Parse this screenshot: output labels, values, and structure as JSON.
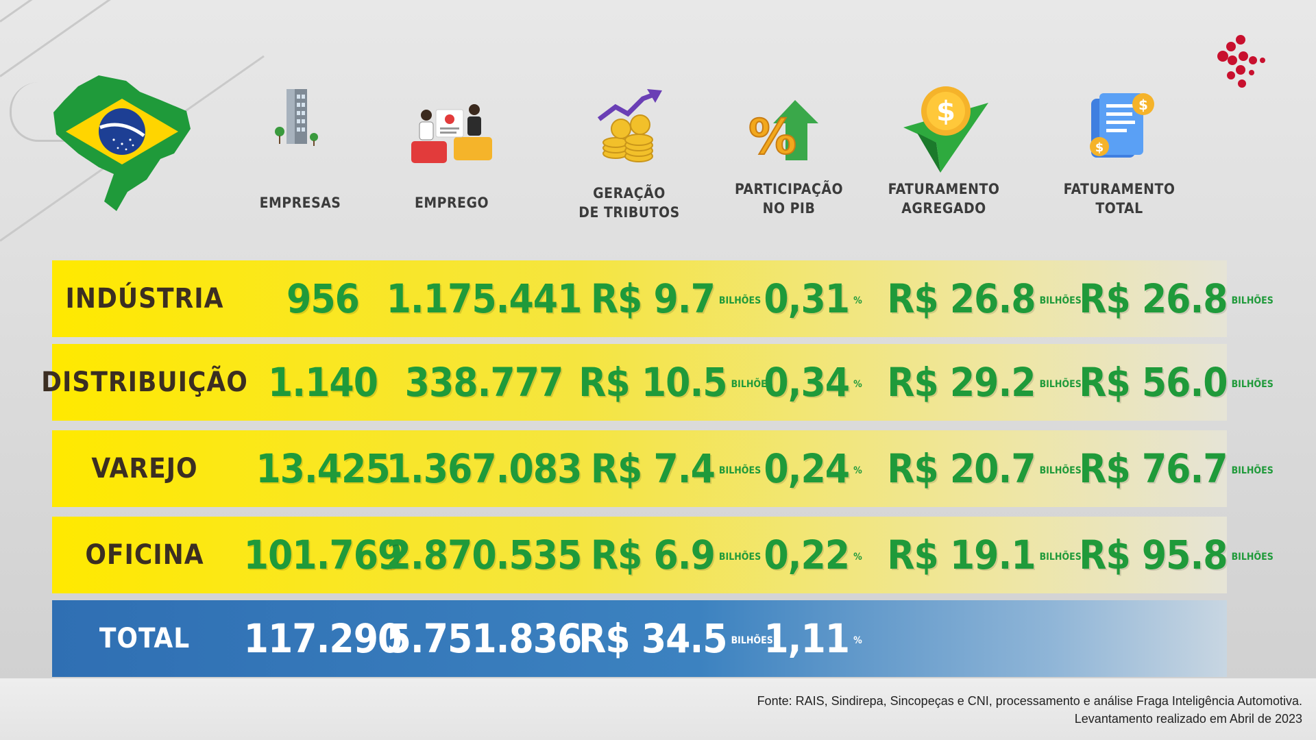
{
  "colors": {
    "green": "#1f9a3a",
    "yellow": "#ffe900",
    "blue": "#2f6fb3",
    "logo": "#c8102e"
  },
  "headers": [
    {
      "line1": "EMPRESAS",
      "line2": "",
      "icon": "building-icon"
    },
    {
      "line1": "EMPREGO",
      "line2": "",
      "icon": "workers-icon"
    },
    {
      "line1": "GERAÇÃO",
      "line2": "DE TRIBUTOS",
      "icon": "coins-growth-icon"
    },
    {
      "line1": "PARTICIPAÇÃO",
      "line2": "NO PIB",
      "icon": "percent-arrow-icon"
    },
    {
      "line1": "FATURAMENTO",
      "line2": "AGREGADO",
      "icon": "dollar-arrow-icon"
    },
    {
      "line1": "FATURAMENTO",
      "line2": "TOTAL",
      "icon": "bill-scroll-icon"
    }
  ],
  "rows": [
    {
      "label": "INDÚSTRIA",
      "empresas": "956",
      "emprego": "1.175.441",
      "tributos": "R$ 9.7",
      "tributos_unit": "BILHÕES",
      "pib": "0,31",
      "pib_unit": "%",
      "agregado": "R$ 26.8",
      "agregado_unit": "BILHÕES",
      "total": "R$ 26.8",
      "total_unit": "BILHÕES"
    },
    {
      "label": "DISTRIBUIÇÃO",
      "empresas": "1.140",
      "emprego": "338.777",
      "tributos": "R$ 10.5",
      "tributos_unit": "BILHÕES",
      "pib": "0,34",
      "pib_unit": "%",
      "agregado": "R$ 29.2",
      "agregado_unit": "BILHÕES",
      "total": "R$ 56.0",
      "total_unit": "BILHÕES"
    },
    {
      "label": "VAREJO",
      "empresas": "13.425",
      "emprego": "1.367.083",
      "tributos": "R$ 7.4",
      "tributos_unit": "BILHÕES",
      "pib": "0,24",
      "pib_unit": "%",
      "agregado": "R$ 20.7",
      "agregado_unit": "BILHÕES",
      "total": "R$ 76.7",
      "total_unit": "BILHÕES"
    },
    {
      "label": "OFICINA",
      "empresas": "101.769",
      "emprego": "2.870.535",
      "tributos": "R$ 6.9",
      "tributos_unit": "BILHÕES",
      "pib": "0,22",
      "pib_unit": "%",
      "agregado": "R$ 19.1",
      "agregado_unit": "BILHÕES",
      "total": "R$ 95.8",
      "total_unit": "BILHÕES"
    }
  ],
  "total_row": {
    "label": "TOTAL",
    "empresas": "117.290",
    "emprego": "5.751.836",
    "tributos": "R$ 34.5",
    "tributos_unit": "BILHÕES",
    "pib": "1,11",
    "pib_unit": "%"
  },
  "source": {
    "line1": "Fonte: RAIS, Sindirepa, Sincopeças e CNI, processamento e análise Fraga Inteligência Automotiva.",
    "line2": "Levantamento realizado em Abril de 2023"
  }
}
